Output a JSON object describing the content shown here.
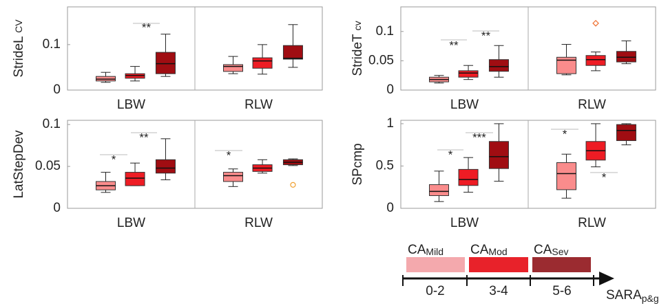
{
  "chart_data": [
    {
      "type": "box",
      "ylabel": "StrideL",
      "ylabel_sub": "CV",
      "ylim": [
        0,
        0.183
      ],
      "yticks": [
        0,
        0.1
      ],
      "categories": [
        "LBW",
        "RLW"
      ],
      "outlier_marker": "circle",
      "series": [
        {
          "color": "#fa8c8c",
          "boxes": [
            {
              "min": 0.017,
              "q1": 0.02,
              "median": 0.024,
              "q3": 0.03,
              "max": 0.039,
              "outliers": []
            },
            {
              "min": 0.036,
              "q1": 0.041,
              "median": 0.052,
              "q3": 0.056,
              "max": 0.074,
              "outliers": []
            }
          ]
        },
        {
          "color": "#ee1c24",
          "boxes": [
            {
              "min": 0.02,
              "q1": 0.026,
              "median": 0.032,
              "q3": 0.036,
              "max": 0.052,
              "outliers": []
            },
            {
              "min": 0.035,
              "q1": 0.048,
              "median": 0.064,
              "q3": 0.071,
              "max": 0.1,
              "outliers": []
            }
          ]
        },
        {
          "color": "#a00d12",
          "boxes": [
            {
              "min": 0.03,
              "q1": 0.036,
              "median": 0.058,
              "q3": 0.083,
              "max": 0.123,
              "outliers": []
            },
            {
              "min": 0.05,
              "q1": 0.068,
              "median": 0.07,
              "q3": 0.098,
              "max": 0.144,
              "outliers": []
            }
          ]
        }
      ],
      "annotations": [
        {
          "text": "**"
        }
      ]
    },
    {
      "type": "box",
      "ylabel": "StrideT",
      "ylabel_sub": "cv",
      "ylim": [
        0,
        0.142
      ],
      "yticks": [
        0,
        0.05,
        0.1
      ],
      "categories": [
        "LBW",
        "RLW"
      ],
      "outlier_marker": "diamond",
      "series": [
        {
          "color": "#fa8c8c",
          "boxes": [
            {
              "min": 0.012,
              "q1": 0.014,
              "median": 0.018,
              "q3": 0.022,
              "max": 0.025,
              "outliers": []
            },
            {
              "min": 0.026,
              "q1": 0.028,
              "median": 0.051,
              "q3": 0.056,
              "max": 0.078,
              "outliers": []
            }
          ]
        },
        {
          "color": "#ee1c24",
          "boxes": [
            {
              "min": 0.018,
              "q1": 0.022,
              "median": 0.029,
              "q3": 0.033,
              "max": 0.042,
              "outliers": []
            },
            {
              "min": 0.033,
              "q1": 0.042,
              "median": 0.052,
              "q3": 0.059,
              "max": 0.065,
              "outliers": [
                0.114
              ]
            }
          ]
        },
        {
          "color": "#a00d12",
          "boxes": [
            {
              "min": 0.022,
              "q1": 0.032,
              "median": 0.04,
              "q3": 0.052,
              "max": 0.076,
              "outliers": []
            },
            {
              "min": 0.045,
              "q1": 0.048,
              "median": 0.056,
              "q3": 0.066,
              "max": 0.084,
              "outliers": []
            }
          ]
        }
      ],
      "annotations": [
        {
          "text": "**"
        },
        {
          "text": "**"
        }
      ]
    },
    {
      "type": "box",
      "ylabel": "LatStepDev",
      "ylim": [
        0,
        0.105
      ],
      "yticks": [
        0,
        0.05,
        0.1
      ],
      "categories": [
        "LBW",
        "RLW"
      ],
      "outlier_marker": "circle",
      "series": [
        {
          "color": "#fa8c8c",
          "boxes": [
            {
              "min": 0.019,
              "q1": 0.022,
              "median": 0.027,
              "q3": 0.032,
              "max": 0.043,
              "outliers": []
            },
            {
              "min": 0.026,
              "q1": 0.032,
              "median": 0.039,
              "q3": 0.043,
              "max": 0.047,
              "outliers": []
            }
          ]
        },
        {
          "color": "#ee1c24",
          "boxes": [
            {
              "min": 0.027,
              "q1": 0.027,
              "median": 0.036,
              "q3": 0.043,
              "max": 0.054,
              "outliers": []
            },
            {
              "min": 0.042,
              "q1": 0.044,
              "median": 0.048,
              "q3": 0.052,
              "max": 0.058,
              "outliers": []
            }
          ]
        },
        {
          "color": "#a00d12",
          "boxes": [
            {
              "min": 0.034,
              "q1": 0.042,
              "median": 0.048,
              "q3": 0.058,
              "max": 0.083,
              "outliers": []
            },
            {
              "min": 0.051,
              "q1": 0.052,
              "median": 0.055,
              "q3": 0.058,
              "max": 0.059,
              "outliers": [
                0.028
              ]
            }
          ]
        }
      ],
      "annotations": [
        {
          "text": "*"
        },
        {
          "text": "**"
        },
        {
          "text": "*"
        }
      ]
    },
    {
      "type": "box",
      "ylabel": "SPcmp",
      "ylim": [
        0,
        1.04
      ],
      "yticks": [
        0,
        0.5,
        1
      ],
      "categories": [
        "LBW",
        "RLW"
      ],
      "outlier_marker": "circle",
      "series": [
        {
          "color": "#fa8c8c",
          "boxes": [
            {
              "min": 0.08,
              "q1": 0.15,
              "median": 0.2,
              "q3": 0.28,
              "max": 0.44,
              "outliers": []
            },
            {
              "min": 0.12,
              "q1": 0.22,
              "median": 0.41,
              "q3": 0.54,
              "max": 0.64,
              "outliers": []
            }
          ]
        },
        {
          "color": "#ee1c24",
          "boxes": [
            {
              "min": 0.19,
              "q1": 0.27,
              "median": 0.34,
              "q3": 0.46,
              "max": 0.6,
              "outliers": []
            },
            {
              "min": 0.49,
              "q1": 0.57,
              "median": 0.68,
              "q3": 0.79,
              "max": 1.0,
              "outliers": []
            }
          ]
        },
        {
          "color": "#a00d12",
          "boxes": [
            {
              "min": 0.32,
              "q1": 0.47,
              "median": 0.61,
              "q3": 0.79,
              "max": 1.0,
              "outliers": []
            },
            {
              "min": 0.75,
              "q1": 0.8,
              "median": 0.92,
              "q3": 0.99,
              "max": 1.0,
              "outliers": []
            }
          ]
        }
      ],
      "annotations": [
        {
          "text": "*"
        },
        {
          "text": "***"
        },
        {
          "text": "*"
        },
        {
          "text": "*"
        }
      ]
    }
  ],
  "legend": {
    "items": [
      {
        "label": "CA",
        "sub": "Mild",
        "color": "#f4a9ad"
      },
      {
        "label": "CA",
        "sub": "Mod",
        "color": "#e8222a"
      },
      {
        "label": "CA",
        "sub": "Sev",
        "color": "#9b2b30"
      }
    ],
    "scale": [
      "0-2",
      "3-4",
      "5-6"
    ],
    "axis_label": "SARA",
    "axis_sub": "p&g"
  }
}
